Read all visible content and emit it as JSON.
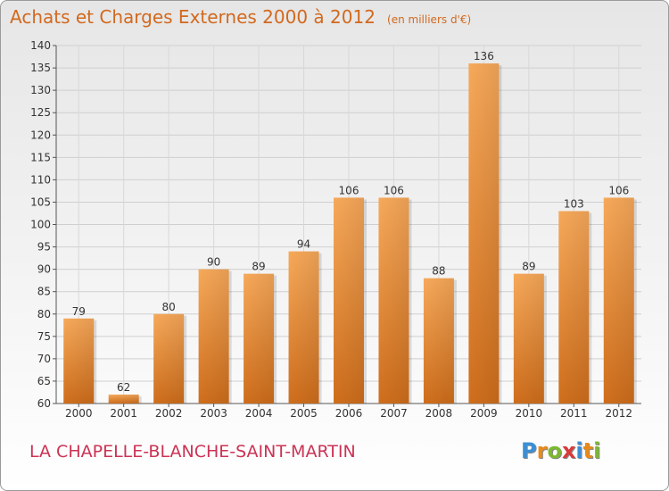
{
  "title": "Achats et Charges Externes 2000 à 2012",
  "unit": "(en milliers d'€)",
  "commune": "LA CHAPELLE-BLANCHE-SAINT-MARTIN",
  "logo": {
    "letters": [
      "P",
      "r",
      "o",
      "x",
      "i",
      "t",
      "i"
    ],
    "colors": [
      "#3a8fd6",
      "#e88a1a",
      "#7cb82f",
      "#d93a3a",
      "#3a8fd6",
      "#e88a1a",
      "#7cb82f"
    ]
  },
  "colors": {
    "bar": "#f0a050",
    "title": "#d2691e",
    "commune": "#cc3355"
  },
  "chart_data": {
    "type": "bar",
    "title": "Achats et Charges Externes 2000 à 2012",
    "subtitle": "(en milliers d'€)",
    "categories": [
      "2000",
      "2001",
      "2002",
      "2003",
      "2004",
      "2005",
      "2006",
      "2007",
      "2008",
      "2009",
      "2010",
      "2011",
      "2012"
    ],
    "values": [
      79,
      62,
      80,
      90,
      89,
      94,
      106,
      106,
      88,
      136,
      89,
      103,
      106
    ],
    "ylim": [
      60,
      140
    ],
    "yticks": [
      60,
      65,
      70,
      75,
      80,
      85,
      90,
      95,
      100,
      105,
      110,
      115,
      120,
      125,
      130,
      135,
      140
    ],
    "grid": true
  }
}
